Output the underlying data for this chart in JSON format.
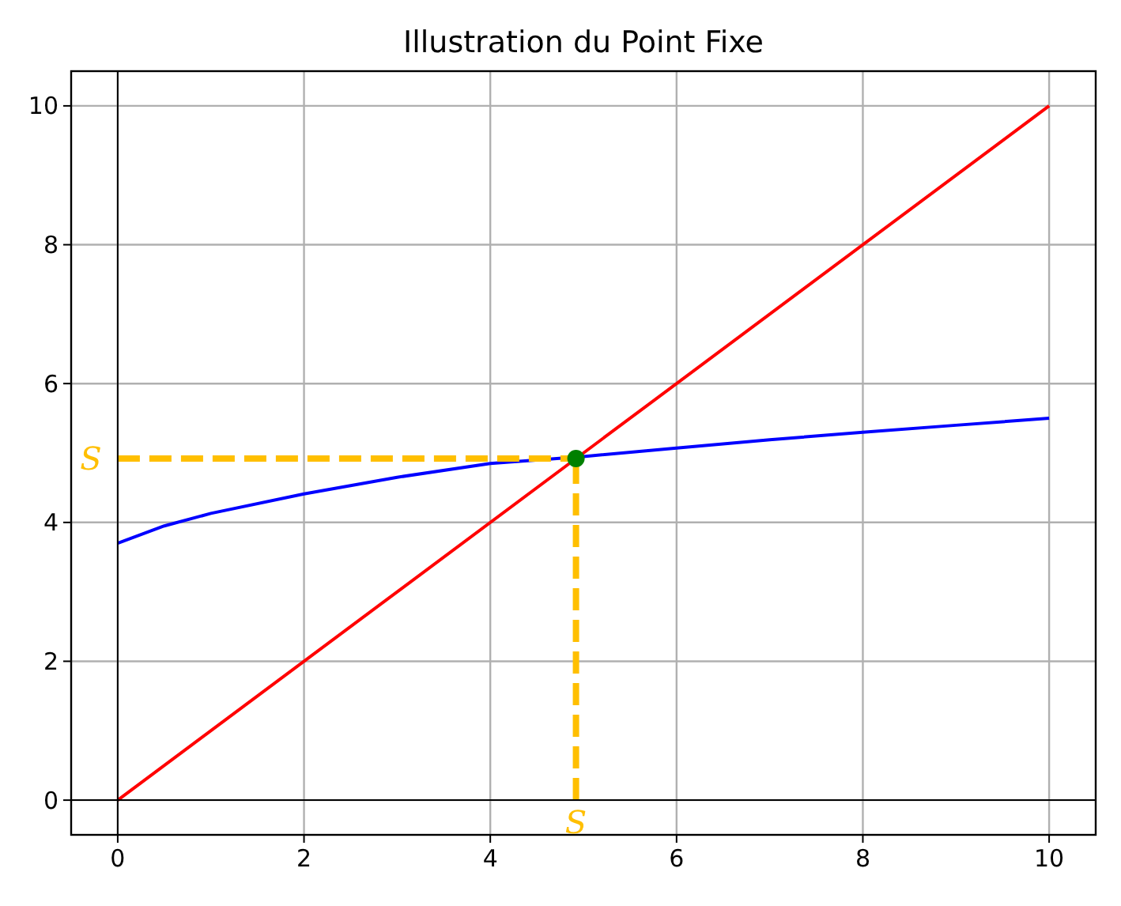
{
  "chart_data": {
    "type": "line",
    "title": "Illustration du Point Fixe",
    "xlim": [
      -0.5,
      10.5
    ],
    "ylim": [
      -0.5,
      10.5
    ],
    "xticks": [
      0,
      2,
      4,
      6,
      8,
      10
    ],
    "yticks": [
      0,
      2,
      4,
      6,
      8,
      10
    ],
    "grid": true,
    "marker": "none",
    "line_style": "solid",
    "series": [
      {
        "color": "#0000ff",
        "x": [
          0,
          0.5,
          1,
          2,
          3,
          4,
          5,
          6,
          7,
          8,
          9,
          10
        ],
        "values": [
          3.7,
          3.95,
          4.13,
          4.41,
          4.65,
          4.85,
          4.95,
          5.07,
          5.19,
          5.3,
          5.4,
          5.5
        ]
      },
      {
        "color": "#ff0000",
        "x": [
          0,
          10
        ],
        "values": [
          0,
          10
        ]
      },
      {
        "color": "#ffbf00",
        "x": [
          0,
          4.92
        ],
        "values": [
          4.92,
          4.92
        ],
        "line_style": "dashed"
      },
      {
        "color": "#ffbf00",
        "x": [
          4.92,
          4.92
        ],
        "values": [
          0,
          4.92
        ],
        "line_style": "dashed"
      },
      {
        "color": "#000000",
        "x": [
          -0.5,
          10.5
        ],
        "values": [
          0,
          0
        ]
      },
      {
        "color": "#000000",
        "x": [
          0,
          0
        ],
        "values": [
          -0.5,
          10.5
        ]
      },
      {
        "type": "scatter",
        "color": "#008000",
        "x": [
          4.92
        ],
        "values": [
          4.92
        ],
        "marker": "circle"
      }
    ],
    "annotations": [
      {
        "text": "S",
        "x": 0,
        "y": 4.92
      },
      {
        "text": "S",
        "x": 4.92,
        "y": 0
      }
    ]
  }
}
